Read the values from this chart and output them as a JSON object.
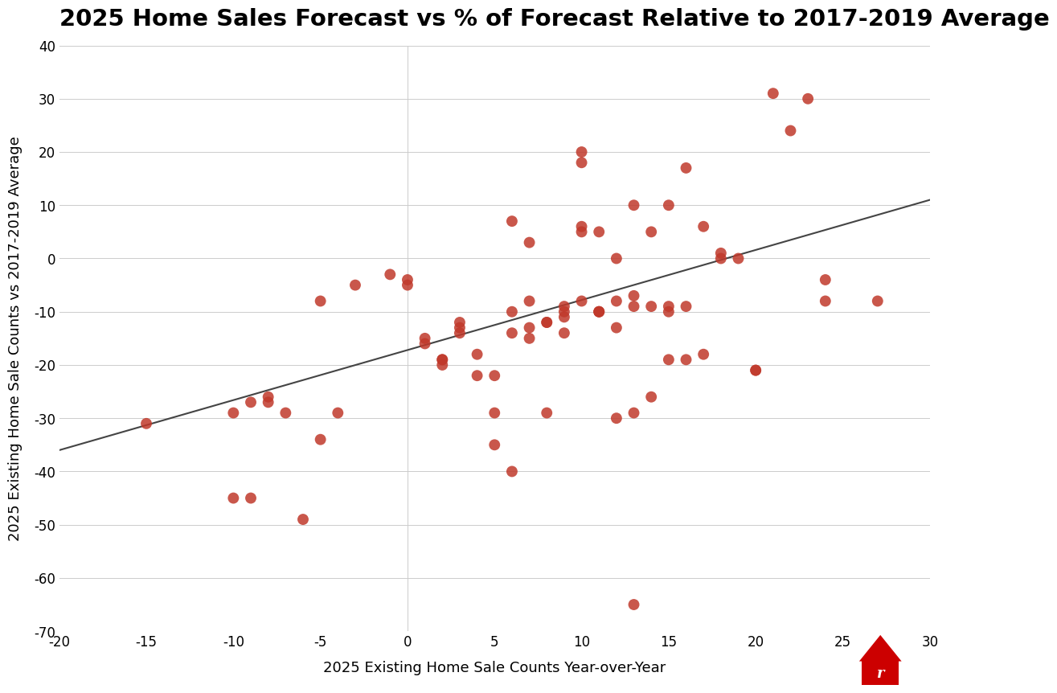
{
  "title": "2025 Home Sales Forecast vs % of Forecast Relative to 2017-2019 Average",
  "xlabel": "2025 Existing Home Sale Counts Year-over-Year",
  "ylabel": "2025 Existing Home Sale Counts vs 2017-2019 Average",
  "xlim": [
    -20,
    30
  ],
  "ylim": [
    -70,
    40
  ],
  "xticks": [
    -20,
    -15,
    -10,
    -5,
    0,
    5,
    10,
    15,
    20,
    25,
    30
  ],
  "yticks": [
    -70,
    -60,
    -50,
    -40,
    -30,
    -20,
    -10,
    0,
    10,
    20,
    30,
    40
  ],
  "scatter_color": "#c0392b",
  "scatter_alpha": 0.85,
  "scatter_size": 100,
  "line_color": "#444444",
  "line_width": 1.5,
  "background_color": "#ffffff",
  "title_fontsize": 21,
  "label_fontsize": 13,
  "tick_fontsize": 12,
  "x_data": [
    -15,
    -10,
    -10,
    -9,
    -9,
    -8,
    -8,
    -7,
    -6,
    -5,
    -5,
    -4,
    -3,
    -1,
    0,
    0,
    1,
    1,
    2,
    2,
    2,
    3,
    3,
    3,
    4,
    4,
    5,
    5,
    5,
    6,
    6,
    6,
    6,
    7,
    7,
    7,
    7,
    8,
    8,
    8,
    9,
    9,
    9,
    9,
    10,
    10,
    10,
    10,
    10,
    11,
    11,
    11,
    11,
    12,
    12,
    12,
    12,
    13,
    13,
    13,
    13,
    13,
    14,
    14,
    14,
    15,
    15,
    15,
    15,
    16,
    16,
    16,
    17,
    17,
    18,
    18,
    19,
    20,
    20,
    21,
    22,
    23,
    24,
    24,
    27
  ],
  "y_data": [
    -31,
    -45,
    -29,
    -45,
    -27,
    -26,
    -27,
    -29,
    -49,
    -34,
    -8,
    -29,
    -5,
    -3,
    -5,
    -4,
    -16,
    -15,
    -19,
    -19,
    -20,
    -12,
    -13,
    -14,
    -18,
    -22,
    -29,
    -22,
    -35,
    -40,
    7,
    -14,
    -10,
    -8,
    3,
    -15,
    -13,
    -29,
    -12,
    -12,
    -14,
    -11,
    -10,
    -9,
    6,
    5,
    -8,
    20,
    18,
    5,
    -10,
    -10,
    -10,
    -13,
    -30,
    -8,
    0,
    -7,
    -29,
    -65,
    -9,
    10,
    5,
    -26,
    -9,
    10,
    -10,
    -19,
    -9,
    -19,
    -9,
    17,
    6,
    -18,
    1,
    0,
    0,
    -21,
    -21,
    31,
    24,
    30,
    -4,
    -8,
    -8
  ],
  "trendline_x": [
    -20,
    30
  ],
  "trendline_y": [
    -36,
    11
  ],
  "grid_color": "#cccccc",
  "grid_linewidth": 0.7,
  "vline_x": 0,
  "hline_y": 0,
  "logo_color": "#cc0000"
}
